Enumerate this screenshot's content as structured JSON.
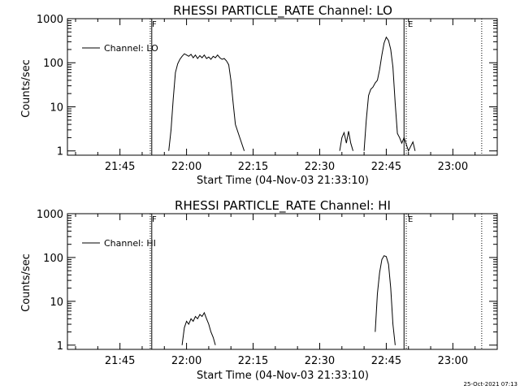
{
  "timestamp": "25-Oct-2021 07:13",
  "chart_data": [
    {
      "type": "line",
      "title": "RHESSI PARTICLE_RATE Channel: LO",
      "xlabel": "Start Time (04-Nov-03 21:33:10)",
      "ylabel": "Counts/sec",
      "x_range": [
        "21:33:10",
        "23:10:00"
      ],
      "x_ticks": [
        "21:45",
        "22:00",
        "22:15",
        "22:30",
        "22:45",
        "23:00"
      ],
      "y_scale": "log",
      "y_range": [
        0.8,
        1000
      ],
      "y_ticks": [
        "1",
        "10",
        "100",
        "1000"
      ],
      "legend": {
        "label": "Channel: LO",
        "placement": "top-left"
      },
      "markers": [
        {
          "label": "F",
          "time": "21:51:50",
          "style": "dotted"
        },
        {
          "label": "",
          "time": "21:52:10",
          "style": "solid"
        },
        {
          "label": "",
          "time": "22:49:00",
          "style": "solid"
        },
        {
          "label": "E",
          "time": "22:49:30",
          "style": "dotted"
        },
        {
          "label": "",
          "time": "23:06:30",
          "style": "dotted"
        }
      ],
      "series": [
        {
          "name": "Channel: LO",
          "segments": [
            [
              [
                "21:56:00",
                1
              ],
              [
                "21:56:30",
                3
              ],
              [
                "21:57:00",
                15
              ],
              [
                "21:57:30",
                60
              ],
              [
                "21:58:00",
                95
              ],
              [
                "21:58:30",
                120
              ],
              [
                "21:59:00",
                140
              ],
              [
                "21:59:30",
                160
              ],
              [
                "22:00:00",
                150
              ],
              [
                "22:00:30",
                140
              ],
              [
                "22:01:00",
                155
              ],
              [
                "22:01:30",
                130
              ],
              [
                "22:02:00",
                150
              ],
              [
                "22:02:30",
                125
              ],
              [
                "22:03:00",
                145
              ],
              [
                "22:03:30",
                130
              ],
              [
                "22:04:00",
                150
              ],
              [
                "22:04:30",
                125
              ],
              [
                "22:05:00",
                135
              ],
              [
                "22:05:30",
                120
              ],
              [
                "22:06:00",
                140
              ],
              [
                "22:06:30",
                130
              ],
              [
                "22:07:00",
                150
              ],
              [
                "22:07:30",
                130
              ],
              [
                "22:08:00",
                120
              ],
              [
                "22:08:30",
                125
              ],
              [
                "22:09:00",
                110
              ],
              [
                "22:09:30",
                90
              ],
              [
                "22:10:00",
                40
              ],
              [
                "22:10:30",
                12
              ],
              [
                "22:11:00",
                4
              ],
              [
                "22:12:00",
                2
              ],
              [
                "22:13:00",
                1
              ]
            ],
            [
              [
                "22:34:30",
                1
              ],
              [
                "22:35:00",
                2
              ],
              [
                "22:35:30",
                2.6
              ],
              [
                "22:36:00",
                1.5
              ],
              [
                "22:36:30",
                2.8
              ],
              [
                "22:37:00",
                1.5
              ],
              [
                "22:37:30",
                1
              ]
            ],
            [
              [
                "22:40:00",
                1
              ],
              [
                "22:40:30",
                5
              ],
              [
                "22:41:00",
                18
              ],
              [
                "22:41:30",
                25
              ],
              [
                "22:42:00",
                28
              ],
              [
                "22:42:30",
                35
              ],
              [
                "22:43:00",
                40
              ],
              [
                "22:43:30",
                70
              ],
              [
                "22:44:00",
                150
              ],
              [
                "22:44:30",
                280
              ],
              [
                "22:45:00",
                380
              ],
              [
                "22:45:30",
                320
              ],
              [
                "22:46:00",
                200
              ],
              [
                "22:46:30",
                80
              ],
              [
                "22:47:00",
                12
              ],
              [
                "22:47:30",
                2.5
              ],
              [
                "22:48:00",
                2
              ],
              [
                "22:48:30",
                1.5
              ],
              [
                "22:49:00",
                2
              ],
              [
                "22:50:00",
                1
              ],
              [
                "22:51:00",
                1.6
              ],
              [
                "22:51:30",
                1
              ]
            ]
          ]
        }
      ]
    },
    {
      "type": "line",
      "title": "RHESSI PARTICLE_RATE Channel: HI",
      "xlabel": "Start Time (04-Nov-03 21:33:10)",
      "ylabel": "Counts/sec",
      "x_range": [
        "21:33:10",
        "23:10:00"
      ],
      "x_ticks": [
        "21:45",
        "22:00",
        "22:15",
        "22:30",
        "22:45",
        "23:00"
      ],
      "y_scale": "log",
      "y_range": [
        0.8,
        1000
      ],
      "y_ticks": [
        "1",
        "10",
        "100",
        "1000"
      ],
      "legend": {
        "label": "Channel: HI",
        "placement": "top-left"
      },
      "markers": [
        {
          "label": "F",
          "time": "21:51:50",
          "style": "dotted"
        },
        {
          "label": "",
          "time": "21:52:10",
          "style": "solid"
        },
        {
          "label": "",
          "time": "22:49:00",
          "style": "solid"
        },
        {
          "label": "E",
          "time": "22:49:30",
          "style": "dotted"
        },
        {
          "label": "",
          "time": "23:06:30",
          "style": "dotted"
        }
      ],
      "series": [
        {
          "name": "Channel: HI",
          "segments": [
            [
              [
                "21:59:00",
                1
              ],
              [
                "21:59:30",
                2.5
              ],
              [
                "22:00:00",
                3.5
              ],
              [
                "22:00:30",
                3
              ],
              [
                "22:01:00",
                4
              ],
              [
                "22:01:30",
                3.5
              ],
              [
                "22:02:00",
                4.5
              ],
              [
                "22:02:30",
                4
              ],
              [
                "22:03:00",
                5
              ],
              [
                "22:03:30",
                4.5
              ],
              [
                "22:04:00",
                5.5
              ],
              [
                "22:04:30",
                4
              ],
              [
                "22:05:00",
                3
              ],
              [
                "22:05:30",
                2
              ],
              [
                "22:06:00",
                1.5
              ],
              [
                "22:06:30",
                1
              ]
            ],
            [
              [
                "22:42:30",
                2
              ],
              [
                "22:43:00",
                15
              ],
              [
                "22:43:30",
                45
              ],
              [
                "22:44:00",
                90
              ],
              [
                "22:44:30",
                110
              ],
              [
                "22:45:00",
                105
              ],
              [
                "22:45:30",
                70
              ],
              [
                "22:46:00",
                20
              ],
              [
                "22:46:30",
                3
              ],
              [
                "22:47:00",
                1
              ]
            ]
          ]
        }
      ]
    }
  ]
}
